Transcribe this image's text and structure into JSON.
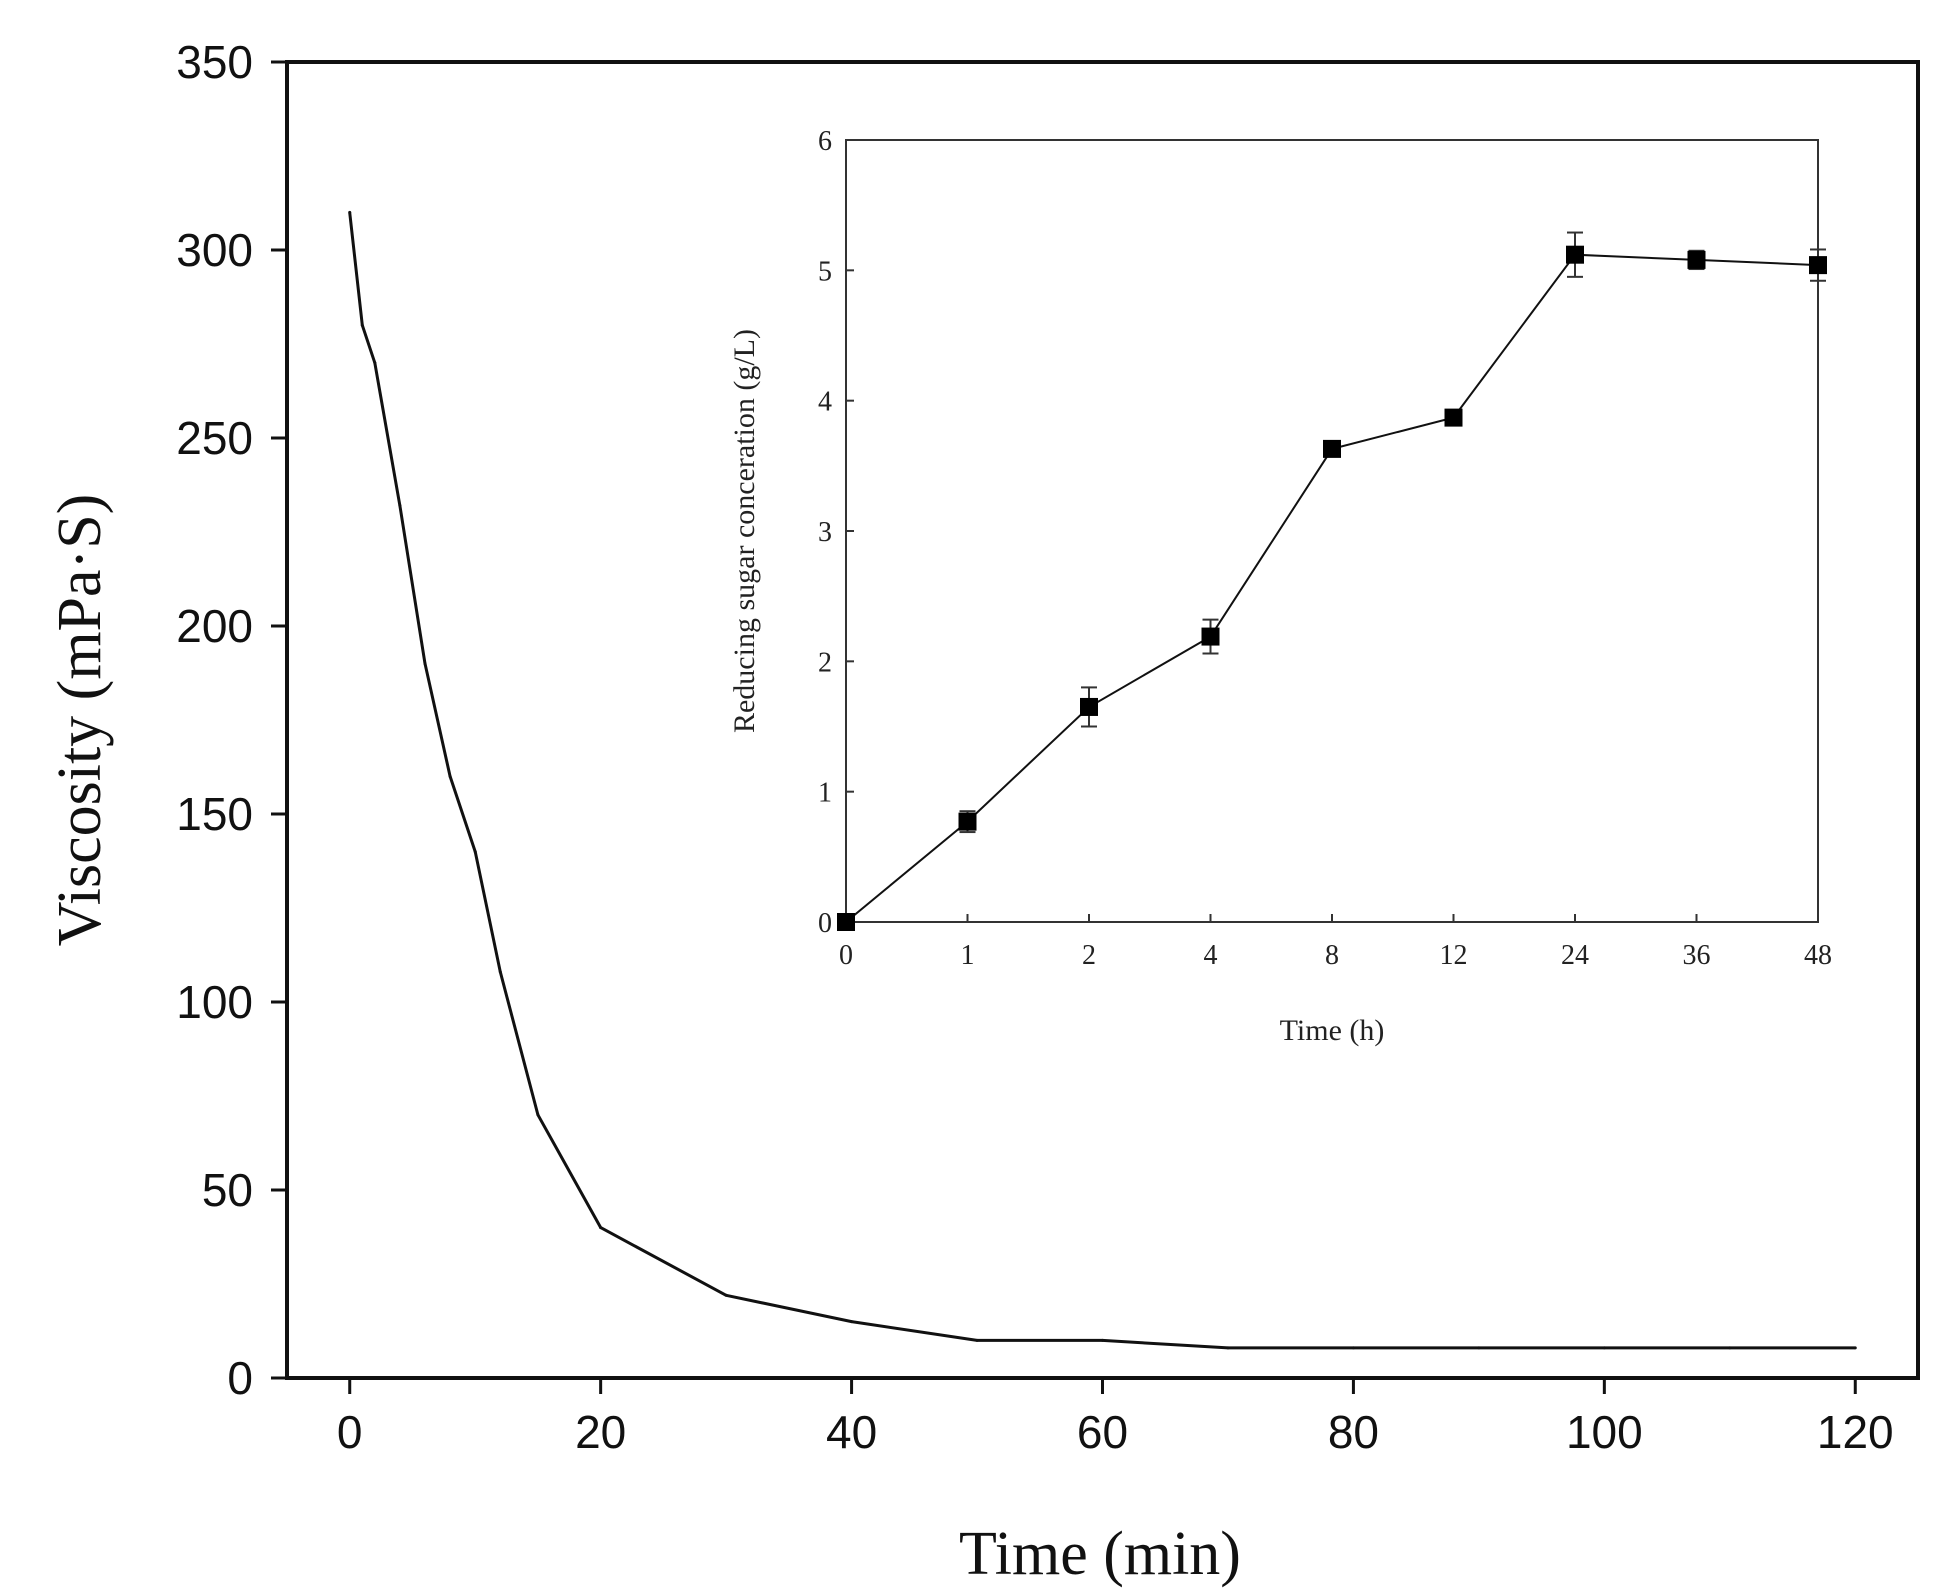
{
  "chart_data": [
    {
      "id": "main",
      "type": "line",
      "title": "",
      "xlabel": "Time (min)",
      "ylabel": "Viscosity (mPa·S)",
      "xlim": [
        -5,
        125
      ],
      "ylim": [
        0,
        350
      ],
      "xticks": [
        0,
        20,
        40,
        60,
        80,
        100,
        120
      ],
      "yticks": [
        0,
        50,
        100,
        150,
        200,
        250,
        300,
        350
      ],
      "series": [
        {
          "name": "Viscosity",
          "color": "#111111",
          "x": [
            0,
            1,
            2,
            4,
            6,
            8,
            10,
            12,
            15,
            20,
            30,
            40,
            50,
            60,
            70,
            80,
            90,
            100,
            110,
            120
          ],
          "y": [
            310,
            280,
            270,
            232,
            190,
            160,
            140,
            108,
            70,
            40,
            22,
            15,
            10,
            10,
            8,
            8,
            8,
            8,
            8,
            8
          ]
        }
      ]
    },
    {
      "id": "inset",
      "type": "line",
      "title": "",
      "xlabel": "Time (h)",
      "ylabel": "Reducing sugar conceration (g/L)",
      "categories": [
        "0",
        "1",
        "2",
        "4",
        "8",
        "12",
        "24",
        "36",
        "48"
      ],
      "ylim": [
        0,
        6
      ],
      "yticks": [
        0,
        1,
        2,
        3,
        4,
        5,
        6
      ],
      "series": [
        {
          "name": "Reducing sugar",
          "color": "#111111",
          "marker": "square",
          "values": [
            0,
            0.77,
            1.65,
            2.19,
            3.63,
            3.87,
            5.12,
            5.08,
            5.04
          ],
          "errors": [
            0,
            0.08,
            0.15,
            0.13,
            0.05,
            0.05,
            0.17,
            0.07,
            0.12
          ]
        }
      ]
    }
  ]
}
